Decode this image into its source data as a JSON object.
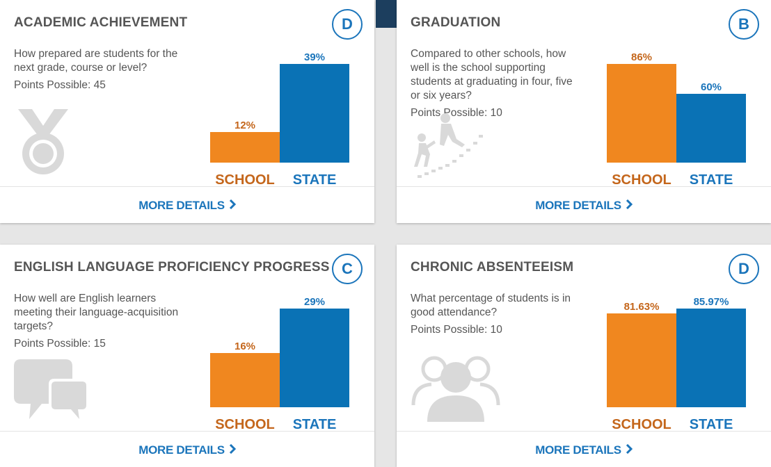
{
  "colors": {
    "school": "#f0871f",
    "state": "#0a72b5",
    "school_label": "#c4661b",
    "state_label": "#1b75bb",
    "grade": "#1b75bb",
    "title": "#555555",
    "icon": "#d9d9d9"
  },
  "more_details_label": "MORE DETAILS",
  "cards": [
    {
      "title": "ACADEMIC ACHIEVEMENT",
      "grade": "D",
      "question": "How prepared are students for the next grade, course or level?",
      "points": "Points Possible: 45",
      "icon": "medal-icon",
      "chart_data": {
        "type": "bar",
        "categories": [
          "SCHOOL",
          "STATE"
        ],
        "values": [
          12,
          39
        ],
        "value_labels": [
          "12%",
          "39%"
        ],
        "ylim": [
          0,
          39
        ]
      }
    },
    {
      "title": "GRADUATION",
      "grade": "B",
      "question": "Compared to other schools, how well is the school supporting students at graduating in four, five or six years?",
      "points": "Points Possible: 10",
      "icon": "climbing-stairs-icon",
      "chart_data": {
        "type": "bar",
        "categories": [
          "SCHOOL",
          "STATE"
        ],
        "values": [
          86,
          60
        ],
        "value_labels": [
          "86%",
          "60%"
        ],
        "ylim": [
          0,
          86
        ]
      }
    },
    {
      "title": "ENGLISH LANGUAGE PROFICIENCY PROGRESS",
      "grade": "C",
      "question": "How well are English learners meeting their language-acquisition targets?",
      "points": "Points Possible: 15",
      "icon": "speech-bubbles-icon",
      "chart_data": {
        "type": "bar",
        "categories": [
          "SCHOOL",
          "STATE"
        ],
        "values": [
          16,
          29
        ],
        "value_labels": [
          "16%",
          "29%"
        ],
        "ylim": [
          0,
          29
        ]
      }
    },
    {
      "title": "CHRONIC ABSENTEEISM",
      "grade": "D",
      "question": "What percentage of students is in good attendance?",
      "points": "Points Possible: 10",
      "icon": "group-people-icon",
      "chart_data": {
        "type": "bar",
        "categories": [
          "SCHOOL",
          "STATE"
        ],
        "values": [
          81.63,
          85.97
        ],
        "value_labels": [
          "81.63%",
          "85.97%"
        ],
        "ylim": [
          0,
          85.97
        ]
      }
    }
  ]
}
